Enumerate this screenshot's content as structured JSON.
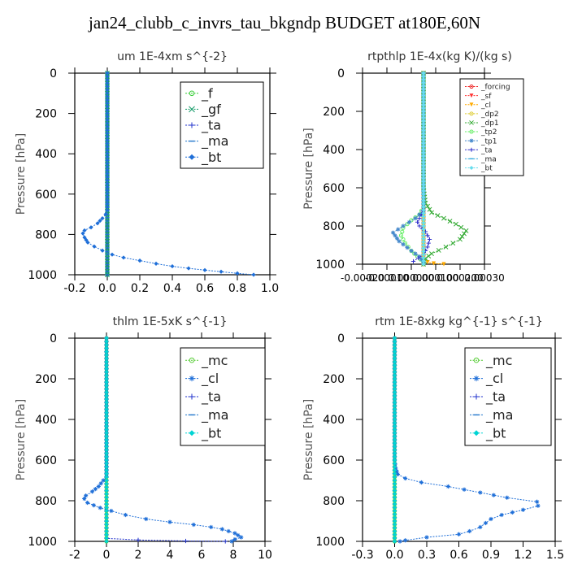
{
  "figure": {
    "title": "jan24_clubb_c_invrs_tau_bkgndp  BUDGET at180E,60N",
    "colors": {
      "mc": "#55cc33",
      "f": "#33cc33",
      "gf": "#119966",
      "cl": "#1f6fd8",
      "ta": "#2233cc",
      "ma": "#2277cc",
      "bt": "#00d4d4",
      "forcing": "#ee2222",
      "sf": "#ff3333",
      "cl_rtp": "#ffaa00",
      "dp2": "#ddcc33",
      "dp1": "#33aa33",
      "tp2": "#66ee66",
      "tp1": "#4488cc",
      "ta_rtp": "#3333cc",
      "ma_rtp": "#33aadd",
      "bt_rtp": "#66ddee"
    }
  },
  "chart_data": [
    {
      "type": "line",
      "title": "um   1E-4xm s^{-2}",
      "ylabel": "Pressure [hPa]",
      "xlim": [
        -0.2,
        1.0
      ],
      "ylim": [
        1000,
        0
      ],
      "xticks": [
        "-0.2",
        "0.0",
        "0.2",
        "0.4",
        "0.6",
        "0.8",
        "1.0"
      ],
      "yticks": [
        "0",
        "200",
        "400",
        "600",
        "800",
        "1000"
      ],
      "grid": false,
      "legend": {
        "placement": "top-right",
        "font": 16
      },
      "series": [
        {
          "name": "_f",
          "color": "#33cc33",
          "marker": "circle",
          "points": [
            [
              0,
              0
            ],
            [
              0,
              1000
            ]
          ]
        },
        {
          "name": "_gf",
          "color": "#119966",
          "marker": "cross",
          "points": [
            [
              0,
              0
            ],
            [
              0,
              1000
            ]
          ]
        },
        {
          "name": "_ta",
          "color": "#2233cc",
          "marker": "plus",
          "points": [
            [
              0,
              0
            ],
            [
              0,
              1000
            ]
          ]
        },
        {
          "name": "_ma",
          "color": "#2277cc",
          "marker": "dash",
          "points": [
            [
              0,
              0
            ],
            [
              0,
              1000
            ]
          ]
        },
        {
          "name": "_bt",
          "color": "#1f6fd8",
          "marker": "diamond",
          "points": [
            [
              0,
              0
            ],
            [
              0,
              680
            ],
            [
              -0.01,
              700
            ],
            [
              -0.03,
              720
            ],
            [
              -0.06,
              745
            ],
            [
              -0.1,
              765
            ],
            [
              -0.14,
              780
            ],
            [
              -0.15,
              795
            ],
            [
              -0.14,
              815
            ],
            [
              -0.12,
              840
            ],
            [
              -0.08,
              860
            ],
            [
              -0.03,
              880
            ],
            [
              0.03,
              900
            ],
            [
              0.1,
              915
            ],
            [
              0.2,
              930
            ],
            [
              0.3,
              945
            ],
            [
              0.4,
              958
            ],
            [
              0.5,
              968
            ],
            [
              0.6,
              977
            ],
            [
              0.7,
              985
            ],
            [
              0.8,
              993
            ],
            [
              0.9,
              1000
            ]
          ]
        }
      ]
    },
    {
      "type": "line",
      "title": "rtpthlp   1E-4x(kg K)/(kg s)",
      "ylabel": "Pressure [hPa]",
      "xlim": [
        -0.0003,
        0.0003
      ],
      "ylim": [
        1000,
        0
      ],
      "xticks": [
        "-0.00020",
        "-0.00010",
        "0.000000",
        "0.000100",
        "0.000200",
        "0.00030"
      ],
      "yticks": [
        "0",
        "200",
        "400",
        "600",
        "800",
        "1000"
      ],
      "grid": false,
      "legend": {
        "placement": "top-right",
        "font": 9
      },
      "series": [
        {
          "name": "_forcing",
          "color": "#ee2222",
          "marker": "circle",
          "points": [
            [
              0,
              0
            ],
            [
              0,
              1000
            ]
          ]
        },
        {
          "name": "_sf",
          "color": "#ff3333",
          "marker": "tri",
          "points": [
            [
              0,
              0
            ],
            [
              0,
              1000
            ]
          ]
        },
        {
          "name": "_cl",
          "color": "#ffaa00",
          "marker": "tri",
          "points": [
            [
              0,
              0
            ],
            [
              0,
              980
            ],
            [
              2e-05,
              990
            ],
            [
              5e-05,
              996
            ],
            [
              0.0001,
              1000
            ]
          ]
        },
        {
          "name": "_dp2",
          "color": "#ddcc33",
          "marker": "circle",
          "points": [
            [
              0,
              0
            ],
            [
              0,
              1000
            ]
          ]
        },
        {
          "name": "_dp1",
          "color": "#33aa33",
          "marker": "cross",
          "points": [
            [
              0,
              0
            ],
            [
              0,
              600
            ],
            [
              1e-05,
              680
            ],
            [
              4e-05,
              730
            ],
            [
              0.0001,
              760
            ],
            [
              0.00016,
              790
            ],
            [
              0.00021,
              825
            ],
            [
              0.00018,
              870
            ],
            [
              0.00011,
              910
            ],
            [
              4e-05,
              945
            ],
            [
              1e-05,
              970
            ],
            [
              0,
              1000
            ]
          ]
        },
        {
          "name": "_tp2",
          "color": "#66ee66",
          "marker": "circle",
          "points": [
            [
              0,
              0
            ],
            [
              0,
              700
            ],
            [
              -2e-05,
              740
            ],
            [
              -6e-05,
              770
            ],
            [
              -0.0001,
              810
            ],
            [
              -0.00011,
              850
            ],
            [
              -9e-05,
              890
            ],
            [
              -6e-05,
              930
            ],
            [
              -3e-05,
              960
            ],
            [
              0,
              990
            ]
          ]
        },
        {
          "name": "_tp1",
          "color": "#4488cc",
          "marker": "star",
          "points": [
            [
              0,
              0
            ],
            [
              0,
              720
            ],
            [
              -4e-05,
              760
            ],
            [
              -0.0001,
              800
            ],
            [
              -0.00015,
              835
            ],
            [
              -0.00012,
              880
            ],
            [
              -6e-05,
              930
            ],
            [
              -2e-05,
              960
            ],
            [
              0,
              990
            ]
          ]
        },
        {
          "name": "_ta",
          "color": "#3333cc",
          "marker": "plus",
          "points": [
            [
              0,
              0
            ],
            [
              0,
              700
            ],
            [
              -1e-05,
              740
            ],
            [
              -3e-05,
              780
            ],
            [
              -2e-05,
              800
            ],
            [
              1e-05,
              830
            ],
            [
              3e-05,
              870
            ],
            [
              2e-05,
              910
            ],
            [
              0,
              950
            ],
            [
              -5e-05,
              985
            ]
          ]
        },
        {
          "name": "_ma",
          "color": "#33aadd",
          "marker": "dash",
          "points": [
            [
              0,
              0
            ],
            [
              0,
              1000
            ]
          ]
        },
        {
          "name": "_bt",
          "color": "#66ddee",
          "marker": "diamond",
          "points": [
            [
              0,
              0
            ],
            [
              0,
              1000
            ]
          ]
        }
      ]
    },
    {
      "type": "line",
      "title": "thlm   1E-5xK s^{-1}",
      "ylabel": "Pressure [hPa]",
      "xlim": [
        -2,
        10
      ],
      "ylim": [
        1000,
        0
      ],
      "xticks": [
        "-2",
        "0",
        "2",
        "4",
        "6",
        "8",
        "10"
      ],
      "yticks": [
        "0",
        "200",
        "400",
        "600",
        "800",
        "1000"
      ],
      "grid": false,
      "legend": {
        "placement": "top-right",
        "font": 16
      },
      "series": [
        {
          "name": "_mc",
          "color": "#55cc33",
          "marker": "circle",
          "points": [
            [
              0,
              0
            ],
            [
              0,
              1000
            ]
          ]
        },
        {
          "name": "_cl",
          "color": "#1f6fd8",
          "marker": "star",
          "points": [
            [
              0,
              0
            ],
            [
              0,
              680
            ],
            [
              -0.2,
              700
            ],
            [
              -0.5,
              730
            ],
            [
              -0.9,
              755
            ],
            [
              -1.3,
              775
            ],
            [
              -1.4,
              790
            ],
            [
              -1.2,
              810
            ],
            [
              -0.4,
              835
            ],
            [
              0.3,
              850
            ],
            [
              1.2,
              870
            ],
            [
              2.5,
              890
            ],
            [
              4,
              905
            ],
            [
              5.5,
              918
            ],
            [
              6.6,
              930
            ],
            [
              7.3,
              940
            ],
            [
              7.7,
              950
            ],
            [
              8.1,
              960
            ],
            [
              8.3,
              970
            ],
            [
              8.5,
              980
            ],
            [
              8.1,
              990
            ],
            [
              7.9,
              1000
            ]
          ]
        },
        {
          "name": "_ta",
          "color": "#2233cc",
          "marker": "plus",
          "points": [
            [
              0,
              0
            ],
            [
              0,
              985
            ],
            [
              2,
              993
            ],
            [
              5,
              998
            ],
            [
              7.5,
              1000
            ]
          ]
        },
        {
          "name": "_ma",
          "color": "#2277cc",
          "marker": "dash",
          "points": [
            [
              0,
              0
            ],
            [
              0,
              1000
            ]
          ]
        },
        {
          "name": "_bt",
          "color": "#00d4d4",
          "marker": "diamond",
          "points": [
            [
              0,
              0
            ],
            [
              0,
              1000
            ]
          ]
        }
      ]
    },
    {
      "type": "line",
      "title": "rtm   1E-8xkg kg^{-1} s^{-1}",
      "ylabel": "Pressure [hPa]",
      "xlim": [
        -0.3,
        1.5
      ],
      "ylim": [
        1000,
        0
      ],
      "xticks": [
        "-0.3",
        "0.0",
        "0.3",
        "0.6",
        "0.9",
        "1.2",
        "1.5"
      ],
      "yticks": [
        "0",
        "200",
        "400",
        "600",
        "800",
        "1000"
      ],
      "grid": false,
      "legend": {
        "placement": "top-right",
        "font": 16
      },
      "series": [
        {
          "name": "_mc",
          "color": "#55cc33",
          "marker": "circle",
          "points": [
            [
              0,
              0
            ],
            [
              0,
              1000
            ]
          ]
        },
        {
          "name": "_cl",
          "color": "#1f6fd8",
          "marker": "star",
          "points": [
            [
              0,
              0
            ],
            [
              0,
              600
            ],
            [
              0.01,
              640
            ],
            [
              0.03,
              670
            ],
            [
              0.1,
              690
            ],
            [
              0.25,
              710
            ],
            [
              0.5,
              730
            ],
            [
              0.8,
              760
            ],
            [
              1.05,
              785
            ],
            [
              1.33,
              805
            ],
            [
              1.34,
              825
            ],
            [
              1.2,
              845
            ],
            [
              1.0,
              870
            ],
            [
              0.9,
              890
            ],
            [
              0.85,
              910
            ],
            [
              0.8,
              930
            ],
            [
              0.7,
              950
            ],
            [
              0.6,
              965
            ],
            [
              0.3,
              980
            ],
            [
              0.1,
              995
            ],
            [
              0.05,
              1000
            ]
          ]
        },
        {
          "name": "_ta",
          "color": "#2233cc",
          "marker": "plus",
          "points": [
            [
              0,
              0
            ],
            [
              0,
              1000
            ]
          ]
        },
        {
          "name": "_ma",
          "color": "#2277cc",
          "marker": "dash",
          "points": [
            [
              0,
              0
            ],
            [
              0,
              1000
            ]
          ]
        },
        {
          "name": "_bt",
          "color": "#00d4d4",
          "marker": "diamond",
          "points": [
            [
              0,
              0
            ],
            [
              0,
              1000
            ]
          ]
        }
      ]
    }
  ]
}
